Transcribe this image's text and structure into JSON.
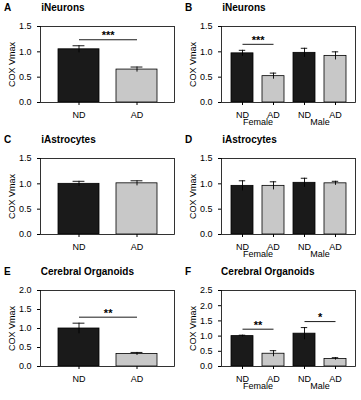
{
  "chart_data": [
    {
      "type": "bar",
      "panel_label": "A",
      "title": "iNeurons",
      "y_label": "COX Vmax",
      "categories": [
        "ND",
        "AD"
      ],
      "values": [
        1.05,
        0.65
      ],
      "errors": [
        0.07,
        0.05
      ],
      "colors": [
        "#1a1a1a",
        "#c8c8c8"
      ],
      "ylim": [
        0,
        1.5
      ],
      "yticks": [
        {
          "value": 0,
          "label": "0.0"
        },
        0.5,
        {
          "value": 1,
          "label": "1.0"
        },
        1.5
      ],
      "annotations": [
        {
          "text": "***",
          "between": [
            0,
            1
          ]
        }
      ]
    },
    {
      "type": "bar",
      "panel_label": "B",
      "title": "iNeurons",
      "y_label": "COX Vmax",
      "categories": [
        "ND",
        "AD",
        "ND",
        "AD"
      ],
      "groups": [
        "Female",
        "Male"
      ],
      "values": [
        0.97,
        0.52,
        0.98,
        0.92
      ],
      "errors": [
        0.06,
        0.06,
        0.09,
        0.08
      ],
      "colors": [
        "#1a1a1a",
        "#c8c8c8",
        "#1a1a1a",
        "#c8c8c8"
      ],
      "ylim": [
        0,
        1.5
      ],
      "yticks": [
        {
          "value": 0,
          "label": "0.0"
        },
        0.5,
        {
          "value": 1,
          "label": "1.0"
        },
        1.5
      ],
      "annotations": [
        {
          "text": "***",
          "between": [
            0,
            1
          ]
        }
      ]
    },
    {
      "type": "bar",
      "panel_label": "C",
      "title": "iAstrocytes",
      "y_label": "COX Vmax",
      "categories": [
        "ND",
        "AD"
      ],
      "values": [
        1.0,
        1.01
      ],
      "errors": [
        0.05,
        0.05
      ],
      "colors": [
        "#1a1a1a",
        "#c8c8c8"
      ],
      "ylim": [
        0,
        1.5
      ],
      "yticks": [
        {
          "value": 0,
          "label": "0.0"
        },
        0.5,
        {
          "value": 1,
          "label": "1.0"
        },
        1.5
      ]
    },
    {
      "type": "bar",
      "panel_label": "D",
      "title": "iAstrocytes",
      "y_label": "COX Vmax",
      "categories": [
        "ND",
        "AD",
        "ND",
        "AD"
      ],
      "groups": [
        "Female",
        "Male"
      ],
      "values": [
        0.96,
        0.96,
        1.02,
        1.01
      ],
      "errors": [
        0.1,
        0.08,
        0.09,
        0.04
      ],
      "colors": [
        "#1a1a1a",
        "#c8c8c8",
        "#1a1a1a",
        "#c8c8c8"
      ],
      "ylim": [
        0,
        1.5
      ],
      "yticks": [
        {
          "value": 0,
          "label": "0.0"
        },
        0.5,
        {
          "value": 1,
          "label": "1.0"
        },
        1.5
      ]
    },
    {
      "type": "bar",
      "panel_label": "E",
      "title": "Cerebral Organoids",
      "y_label": "COX Vmax",
      "categories": [
        "ND",
        "AD"
      ],
      "values": [
        1.0,
        0.33
      ],
      "errors": [
        0.14,
        0.04
      ],
      "colors": [
        "#1a1a1a",
        "#c8c8c8"
      ],
      "ylim": [
        0,
        2
      ],
      "yticks": [
        {
          "value": 0,
          "label": "0.0"
        },
        0.5,
        {
          "value": 1,
          "label": "1.0"
        },
        1.5,
        {
          "value": 2,
          "label": "2.0"
        }
      ],
      "annotations": [
        {
          "text": "**",
          "between": [
            0,
            1
          ]
        }
      ]
    },
    {
      "type": "bar",
      "panel_label": "F",
      "title": "Cerebral Organoids",
      "y_label": "COX Vmax",
      "categories": [
        "ND",
        "AD",
        "ND",
        "AD"
      ],
      "groups": [
        "Female",
        "Male"
      ],
      "values": [
        1.0,
        0.42,
        1.08,
        0.25
      ],
      "errors": [
        0.03,
        0.1,
        0.2,
        0.04
      ],
      "colors": [
        "#1a1a1a",
        "#c8c8c8",
        "#1a1a1a",
        "#c8c8c8"
      ],
      "ylim": [
        0,
        2.5
      ],
      "yticks": [
        {
          "value": 0,
          "label": "0.0"
        },
        0.5,
        {
          "value": 1,
          "label": "1.0"
        },
        1.5,
        {
          "value": 2,
          "label": "2.0"
        },
        2.5
      ],
      "annotations": [
        {
          "text": "**",
          "between": [
            0,
            1
          ]
        },
        {
          "text": "*",
          "between": [
            2,
            3
          ]
        }
      ]
    }
  ]
}
